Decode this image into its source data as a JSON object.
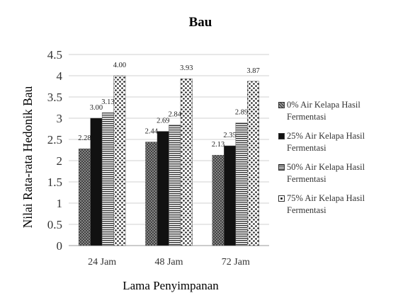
{
  "chart_data": {
    "type": "bar",
    "title": "Bau",
    "xlabel": "Lama Penyimpanan",
    "ylabel": "Nilai Rata-rata Hedonik Bau",
    "categories": [
      "24 Jam",
      "48 Jam",
      "72 Jam"
    ],
    "ylim": [
      0,
      4.5
    ],
    "yticks": [
      "0",
      "0.5",
      "1",
      "1.5",
      "2",
      "2.5",
      "3",
      "3.5",
      "4",
      "4.5"
    ],
    "grid": true,
    "legend_position": "right",
    "series": [
      {
        "name": "0% Air Kelapa Hasil Fermentasi",
        "values": [
          2.28,
          2.44,
          2.13
        ],
        "labels": [
          "2.28",
          "2.44",
          "2.13"
        ],
        "pattern": "crosshatch"
      },
      {
        "name": "25% Air Kelapa Hasil Fermentasi",
        "values": [
          3.0,
          2.69,
          2.35
        ],
        "labels": [
          "3.00",
          "2.69",
          "2.35"
        ],
        "pattern": "solid"
      },
      {
        "name": "50% Air Kelapa Hasil Fermentasi",
        "values": [
          3.13,
          2.84,
          2.89
        ],
        "labels": [
          "3.13",
          "2.84",
          "2.89"
        ],
        "pattern": "horizontal"
      },
      {
        "name": "75% Air Kelapa Hasil Fermentasi",
        "values": [
          4.0,
          3.93,
          3.87
        ],
        "labels": [
          "4.00",
          "3.93",
          "3.87"
        ],
        "pattern": "dots"
      }
    ]
  }
}
